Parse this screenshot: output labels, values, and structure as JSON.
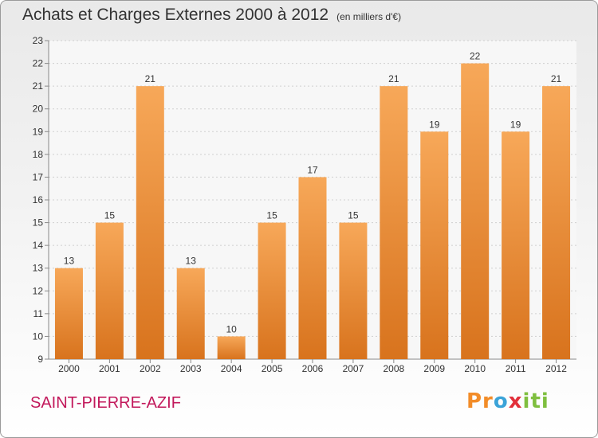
{
  "title": "Achats et Charges Externes 2000 à 2012",
  "subtitle": "(en milliers d'€)",
  "commune": "SAINT-PIERRE-AZIF",
  "logo": {
    "text": "Proxiti",
    "colors": [
      "#f28c28",
      "#3ba3d8",
      "#e2303b",
      "#7fbf3f"
    ]
  },
  "colors": {
    "bar_top": "#f7a859",
    "bar_bottom": "#d8731d",
    "title": "#333333",
    "commune": "#c2185b"
  },
  "chart_data": {
    "type": "bar",
    "categories": [
      "2000",
      "2001",
      "2002",
      "2003",
      "2004",
      "2005",
      "2006",
      "2007",
      "2008",
      "2009",
      "2010",
      "2011",
      "2012"
    ],
    "values": [
      13,
      15,
      21,
      13,
      10,
      15,
      17,
      15,
      21,
      19,
      22,
      19,
      21
    ],
    "ylim": [
      9,
      23
    ],
    "yticks": [
      9,
      10,
      11,
      12,
      13,
      14,
      15,
      16,
      17,
      18,
      19,
      20,
      21,
      22,
      23
    ],
    "grid": true,
    "data_labels": true,
    "legend": "none"
  }
}
